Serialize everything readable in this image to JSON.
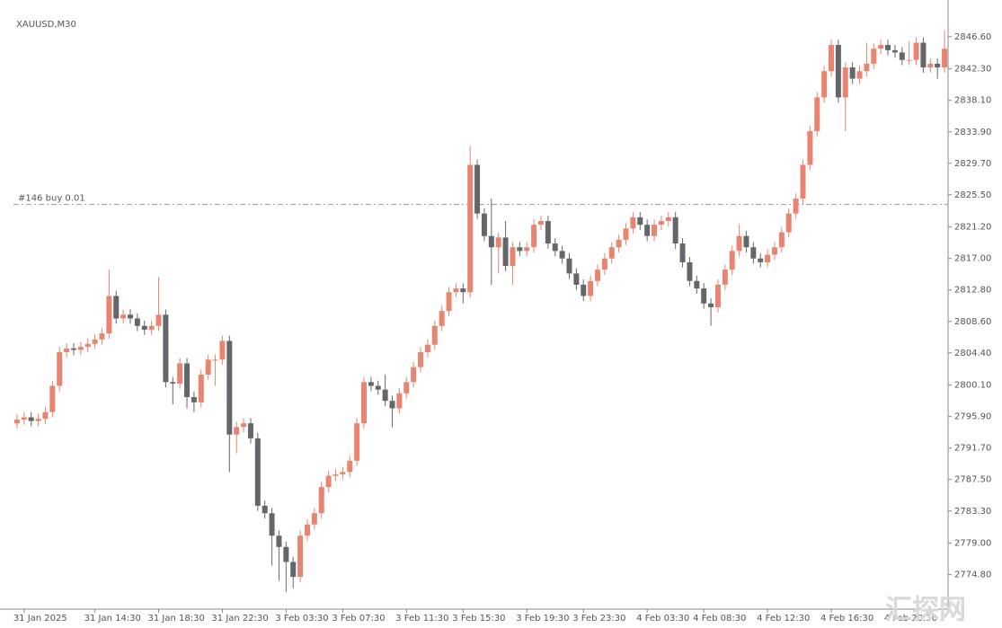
{
  "chart_data": {
    "type": "candlestick",
    "title": "XAUUSD,M30",
    "watermark": "汇探网",
    "trade_line": {
      "label": "#146 buy 0.01",
      "price": 2824.2,
      "color": "#9a9a9a"
    },
    "up_color": "#e8846f",
    "down_color": "#64666b",
    "ylim": [
      2770.2,
      2851.5
    ],
    "yticks": [
      {
        "value": 2846.6,
        "label": "2846.60"
      },
      {
        "value": 2842.3,
        "label": "2842.30"
      },
      {
        "value": 2838.1,
        "label": "2838.10"
      },
      {
        "value": 2833.9,
        "label": "2833.90"
      },
      {
        "value": 2829.7,
        "label": "2829.70"
      },
      {
        "value": 2825.5,
        "label": "2825.50"
      },
      {
        "value": 2821.2,
        "label": "2821.20"
      },
      {
        "value": 2817,
        "label": "2817.00"
      },
      {
        "value": 2812.8,
        "label": "2812.80"
      },
      {
        "value": 2808.6,
        "label": "2808.60"
      },
      {
        "value": 2804.4,
        "label": "2804.40"
      },
      {
        "value": 2800.1,
        "label": "2800.10"
      },
      {
        "value": 2795.9,
        "label": "2795.90"
      },
      {
        "value": 2791.7,
        "label": "2791.70"
      },
      {
        "value": 2787.5,
        "label": "2787.50"
      },
      {
        "value": 2783.3,
        "label": "2783.30"
      },
      {
        "value": 2779,
        "label": "2779.00"
      },
      {
        "value": 2774.8,
        "label": "2774.80"
      }
    ],
    "categories": [
      null,
      "31 Jan 2025",
      null,
      null,
      null,
      null,
      null,
      null,
      null,
      null,
      null,
      "31 Jan 14:30",
      null,
      null,
      null,
      null,
      null,
      null,
      null,
      null,
      "31 Jan 18:30",
      null,
      null,
      null,
      null,
      null,
      null,
      null,
      null,
      "31 Jan 22:30",
      null,
      null,
      null,
      null,
      null,
      null,
      null,
      null,
      "3 Feb 03:30",
      null,
      null,
      null,
      null,
      null,
      null,
      null,
      "3 Feb 07:30",
      null,
      null,
      null,
      null,
      null,
      null,
      null,
      null,
      "3 Feb 11:30",
      null,
      null,
      null,
      null,
      null,
      null,
      null,
      "3 Feb 15:30",
      null,
      null,
      null,
      null,
      null,
      null,
      null,
      null,
      "3 Feb 19:30",
      null,
      null,
      null,
      null,
      null,
      null,
      null,
      "3 Feb 23:30",
      null,
      null,
      null,
      null,
      null,
      null,
      null,
      null,
      "4 Feb 03:30",
      null,
      null,
      null,
      null,
      null,
      null,
      null,
      "4 Feb 08:30",
      null,
      null,
      null,
      null,
      null,
      null,
      null,
      null,
      "4 Feb 12:30",
      null,
      null,
      null,
      null,
      null,
      null,
      null,
      null,
      "4 Feb 16:30",
      null,
      null,
      null,
      null,
      null,
      null,
      null,
      null,
      "4 Feb 20:30",
      null,
      null,
      null,
      null,
      null,
      null,
      null
    ],
    "ohlc": [
      [
        2795.0,
        2796.2,
        2794.3,
        2795.5
      ],
      [
        2795.5,
        2796.5,
        2794.8,
        2795.8
      ],
      [
        2795.8,
        2796.5,
        2794.6,
        2795.3
      ],
      [
        2795.3,
        2796.3,
        2794.6,
        2795.6
      ],
      [
        2795.6,
        2797.2,
        2794.9,
        2796.5
      ],
      [
        2796.5,
        2800.7,
        2795.8,
        2800.0
      ],
      [
        2800.0,
        2805.2,
        2799.3,
        2804.5
      ],
      [
        2804.5,
        2805.7,
        2803.8,
        2805.0
      ],
      [
        2805.0,
        2805.7,
        2804.1,
        2804.8
      ],
      [
        2804.8,
        2805.9,
        2804.1,
        2805.2
      ],
      [
        2805.2,
        2806.3,
        2804.5,
        2805.6
      ],
      [
        2805.6,
        2806.9,
        2804.9,
        2806.2
      ],
      [
        2806.2,
        2807.7,
        2805.5,
        2807.0
      ],
      [
        2807.0,
        2815.5,
        2806.3,
        2812.0
      ],
      [
        2812.0,
        2812.7,
        2808.3,
        2809.0
      ],
      [
        2809.0,
        2810.2,
        2808.3,
        2809.5
      ],
      [
        2809.5,
        2810.2,
        2808.3,
        2809.0
      ],
      [
        2809.0,
        2809.7,
        2807.3,
        2808.0
      ],
      [
        2808.0,
        2808.7,
        2806.8,
        2807.5
      ],
      [
        2807.5,
        2808.7,
        2806.8,
        2808.0
      ],
      [
        2808.0,
        2814.5,
        2807.3,
        2809.5
      ],
      [
        2809.5,
        2810.2,
        2799.8,
        2800.5
      ],
      [
        2800.5,
        2801.2,
        2797.5,
        2800.3
      ],
      [
        2800.3,
        2803.7,
        2799.6,
        2803.0
      ],
      [
        2803.0,
        2803.7,
        2797.0,
        2798.5
      ],
      [
        2798.5,
        2799.2,
        2796.5,
        2797.8
      ],
      [
        2797.8,
        2802.2,
        2797.1,
        2801.5
      ],
      [
        2801.5,
        2804.2,
        2800.8,
        2803.5
      ],
      [
        2803.5,
        2804.2,
        2800.0,
        2803.5
      ],
      [
        2803.5,
        2806.7,
        2802.8,
        2806.0
      ],
      [
        2806.0,
        2806.7,
        2788.5,
        2793.5
      ],
      [
        2793.5,
        2795.2,
        2791.0,
        2794.5
      ],
      [
        2794.5,
        2795.7,
        2793.8,
        2795.0
      ],
      [
        2795.0,
        2795.7,
        2792.3,
        2793.0
      ],
      [
        2793.0,
        2793.7,
        2783.3,
        2784.0
      ],
      [
        2784.0,
        2784.7,
        2782.3,
        2783.0
      ],
      [
        2783.0,
        2783.7,
        2776.0,
        2780.0
      ],
      [
        2780.0,
        2780.7,
        2774.0,
        2778.5
      ],
      [
        2778.5,
        2779.2,
        2772.5,
        2776.5
      ],
      [
        2776.5,
        2777.2,
        2773.0,
        2774.5
      ],
      [
        2774.5,
        2780.7,
        2773.8,
        2780.0
      ],
      [
        2780.0,
        2782.2,
        2779.3,
        2781.5
      ],
      [
        2781.5,
        2783.7,
        2780.8,
        2783.0
      ],
      [
        2783.0,
        2787.2,
        2782.3,
        2786.5
      ],
      [
        2786.5,
        2788.7,
        2785.8,
        2788.0
      ],
      [
        2788.0,
        2788.9,
        2787.3,
        2788.2
      ],
      [
        2788.2,
        2789.2,
        2787.5,
        2788.5
      ],
      [
        2788.5,
        2790.7,
        2787.8,
        2790.0
      ],
      [
        2790.0,
        2795.7,
        2789.3,
        2795.0
      ],
      [
        2795.0,
        2801.2,
        2794.3,
        2800.5
      ],
      [
        2800.5,
        2801.2,
        2799.3,
        2800.0
      ],
      [
        2800.0,
        2800.7,
        2798.8,
        2799.5
      ],
      [
        2799.5,
        2801.5,
        2797.3,
        2798.0
      ],
      [
        2798.0,
        2798.7,
        2794.5,
        2797.0
      ],
      [
        2797.0,
        2799.7,
        2796.3,
        2799.0
      ],
      [
        2799.0,
        2801.2,
        2798.3,
        2800.5
      ],
      [
        2800.5,
        2803.2,
        2799.8,
        2802.5
      ],
      [
        2802.5,
        2805.2,
        2801.8,
        2804.5
      ],
      [
        2804.5,
        2806.2,
        2803.8,
        2805.5
      ],
      [
        2805.5,
        2808.7,
        2804.8,
        2808.0
      ],
      [
        2808.0,
        2810.7,
        2807.3,
        2810.0
      ],
      [
        2810.0,
        2813.2,
        2809.3,
        2812.5
      ],
      [
        2812.5,
        2813.7,
        2811.8,
        2813.0
      ],
      [
        2813.0,
        2813.7,
        2811.0,
        2812.5
      ],
      [
        2812.5,
        2832.0,
        2811.8,
        2829.5
      ],
      [
        2829.5,
        2830.2,
        2822.3,
        2823.0
      ],
      [
        2823.0,
        2823.7,
        2819.3,
        2820.0
      ],
      [
        2820.0,
        2825.0,
        2813.5,
        2818.5
      ],
      [
        2818.5,
        2820.5,
        2815.0,
        2819.8
      ],
      [
        2819.8,
        2822.0,
        2815.3,
        2816.0
      ],
      [
        2816.0,
        2819.2,
        2813.5,
        2818.5
      ],
      [
        2818.5,
        2819.2,
        2817.3,
        2818.0
      ],
      [
        2818.0,
        2819.2,
        2817.3,
        2818.5
      ],
      [
        2818.5,
        2822.2,
        2817.8,
        2821.5
      ],
      [
        2821.5,
        2822.7,
        2820.8,
        2822.0
      ],
      [
        2822.0,
        2822.7,
        2818.3,
        2819.0
      ],
      [
        2819.0,
        2819.7,
        2817.3,
        2818.0
      ],
      [
        2818.0,
        2818.7,
        2816.3,
        2817.0
      ],
      [
        2817.0,
        2817.7,
        2814.3,
        2815.0
      ],
      [
        2815.0,
        2815.7,
        2812.8,
        2813.5
      ],
      [
        2813.5,
        2814.2,
        2811.3,
        2812.0
      ],
      [
        2812.0,
        2814.7,
        2811.3,
        2814.0
      ],
      [
        2814.0,
        2816.2,
        2813.3,
        2815.5
      ],
      [
        2815.5,
        2817.7,
        2814.8,
        2817.0
      ],
      [
        2817.0,
        2819.2,
        2816.3,
        2818.5
      ],
      [
        2818.5,
        2820.2,
        2817.8,
        2819.5
      ],
      [
        2819.5,
        2821.7,
        2818.8,
        2821.0
      ],
      [
        2821.0,
        2823.2,
        2820.3,
        2822.5
      ],
      [
        2822.5,
        2823.2,
        2820.8,
        2821.5
      ],
      [
        2821.5,
        2822.2,
        2819.3,
        2820.0
      ],
      [
        2820.0,
        2822.2,
        2819.3,
        2821.5
      ],
      [
        2821.5,
        2822.7,
        2820.8,
        2822.0
      ],
      [
        2822.0,
        2823.2,
        2821.3,
        2822.5
      ],
      [
        2822.5,
        2823.2,
        2818.3,
        2819.0
      ],
      [
        2819.0,
        2819.7,
        2815.8,
        2816.5
      ],
      [
        2816.5,
        2817.2,
        2813.3,
        2814.0
      ],
      [
        2814.0,
        2814.7,
        2812.3,
        2813.0
      ],
      [
        2813.0,
        2813.7,
        2810.3,
        2811.0
      ],
      [
        2811.0,
        2811.7,
        2808.0,
        2810.5
      ],
      [
        2810.5,
        2814.2,
        2809.8,
        2813.5
      ],
      [
        2813.5,
        2816.2,
        2812.8,
        2815.5
      ],
      [
        2815.5,
        2818.7,
        2814.8,
        2818.0
      ],
      [
        2818.0,
        2821.5,
        2817.3,
        2820.0
      ],
      [
        2820.0,
        2820.7,
        2817.8,
        2818.5
      ],
      [
        2818.5,
        2819.2,
        2816.3,
        2817.0
      ],
      [
        2817.0,
        2817.7,
        2815.8,
        2816.5
      ],
      [
        2816.5,
        2818.2,
        2815.8,
        2817.5
      ],
      [
        2817.5,
        2819.2,
        2816.8,
        2818.5
      ],
      [
        2818.5,
        2821.2,
        2817.8,
        2820.5
      ],
      [
        2820.5,
        2823.7,
        2819.8,
        2823.0
      ],
      [
        2823.0,
        2825.7,
        2822.3,
        2825.0
      ],
      [
        2825.0,
        2830.2,
        2824.3,
        2829.5
      ],
      [
        2829.5,
        2834.7,
        2828.8,
        2834.0
      ],
      [
        2834.0,
        2839.2,
        2833.3,
        2838.5
      ],
      [
        2838.5,
        2842.7,
        2837.8,
        2842.0
      ],
      [
        2842.0,
        2846.2,
        2841.3,
        2845.5
      ],
      [
        2845.5,
        2846.2,
        2837.8,
        2838.5
      ],
      [
        2838.5,
        2843.2,
        2834.0,
        2842.5
      ],
      [
        2842.5,
        2843.2,
        2840.3,
        2841.0
      ],
      [
        2841.0,
        2842.7,
        2840.3,
        2842.0
      ],
      [
        2842.0,
        2845.8,
        2841.3,
        2843.0
      ],
      [
        2843.0,
        2845.7,
        2842.3,
        2845.0
      ],
      [
        2845.0,
        2846.2,
        2844.3,
        2845.5
      ],
      [
        2845.5,
        2846.2,
        2844.1,
        2844.8
      ],
      [
        2844.8,
        2845.5,
        2843.8,
        2844.5
      ],
      [
        2844.5,
        2845.2,
        2842.8,
        2843.5
      ],
      [
        2843.5,
        2846.0,
        2842.8,
        2843.5
      ],
      [
        2843.5,
        2846.5,
        2842.8,
        2845.8
      ],
      [
        2845.8,
        2846.5,
        2841.8,
        2842.5
      ],
      [
        2842.5,
        2843.7,
        2841.8,
        2843.0
      ],
      [
        2843.0,
        2843.7,
        2841.0,
        2842.5
      ],
      [
        2842.5,
        2847.5,
        2841.8,
        2845.0
      ]
    ]
  }
}
